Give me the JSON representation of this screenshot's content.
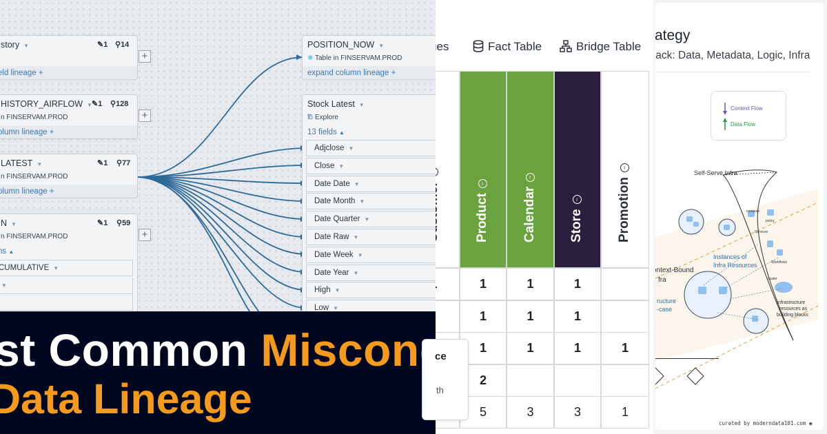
{
  "lineage": {
    "nodes": [
      {
        "name": "story",
        "sub": "",
        "link": "eld lineage +",
        "pins": "1",
        "queries": "14"
      },
      {
        "name": "HISTORY_AIRFLOW",
        "sub": "n FINSERVAM.PROD",
        "link": "olumn lineage +",
        "pins": "1",
        "queries": "128"
      },
      {
        "name": "LATEST",
        "sub": "n FINSERVAM.PROD",
        "link": "olumn lineage +",
        "pins": "1",
        "queries": "77"
      },
      {
        "name": "N",
        "sub": "n FINSERVAM.PROD",
        "link": "ns",
        "pins": "1",
        "queries": "59",
        "field": "CUMULATIVE"
      }
    ],
    "position_now": {
      "name": "POSITION_NOW",
      "sub": "Table in FINSERVAM.PROD",
      "link": "expand column lineage +"
    },
    "stock_latest": {
      "name": "Stock Latest",
      "sub": "Explore",
      "fields_count": "13 fields"
    },
    "fields": [
      "Adjclose",
      "Close",
      "Date Date",
      "Date Month",
      "Date Quarter",
      "Date Raw",
      "Date Week",
      "Date Year",
      "High",
      "Low"
    ]
  },
  "banner": {
    "line1_white": "st Common ",
    "line1_orange": "Misconceptio",
    "line2": "Data Lineage"
  },
  "model": {
    "tabs": [
      "ues",
      "Fact Table",
      "Bridge Table"
    ],
    "columns": [
      {
        "label": "Customer",
        "bg": "#ffffff",
        "fg": "#2a2f38"
      },
      {
        "label": "Product",
        "bg": "#6aa23e",
        "fg": "#ffffff"
      },
      {
        "label": "Calendar",
        "bg": "#6aa23e",
        "fg": "#ffffff"
      },
      {
        "label": "Store",
        "bg": "#2a1f3d",
        "fg": "#ffffff"
      },
      {
        "label": "Promotion",
        "bg": "#ffffff",
        "fg": "#2a2f38"
      }
    ],
    "rows": [
      [
        "1",
        "1",
        "1",
        "1",
        ""
      ],
      [
        "",
        "1",
        "1",
        "1",
        ""
      ],
      [
        "",
        "1",
        "1",
        "1",
        "1"
      ],
      [
        "",
        "2",
        "",
        "",
        ""
      ],
      [
        "",
        "5",
        "3",
        "3",
        "1"
      ]
    ],
    "popup": {
      "line1": "ce",
      "line2": "th"
    }
  },
  "strategy": {
    "title": "rategy",
    "subtitle": "tack: Data, Metadata, Logic, Infra",
    "legend": {
      "context": "Context Flow",
      "data": "Data Flow"
    },
    "labels": {
      "self_serve": "Self-Serve Infra",
      "instances": "Instances of",
      "instances2": "Infra Resources",
      "context_bound": "ontext-Bound",
      "context_bound2": "fra",
      "structure": "ructure",
      "structure2": "-case",
      "blocks1": "Infrastructure",
      "blocks2": "resources as",
      "blocks3": "building blocks",
      "compute": "compute",
      "policy": "policy",
      "services": "Services",
      "workflows": "Workflows",
      "cluster": "cluster"
    },
    "credit": "curated by moderndata101.com"
  },
  "colors": {
    "accent_orange": "#f59a1c",
    "banner_bg": "#020720",
    "edge_blue": "#2d6a98",
    "green": "#6aa23e",
    "dark_purple": "#2a1f3d"
  }
}
